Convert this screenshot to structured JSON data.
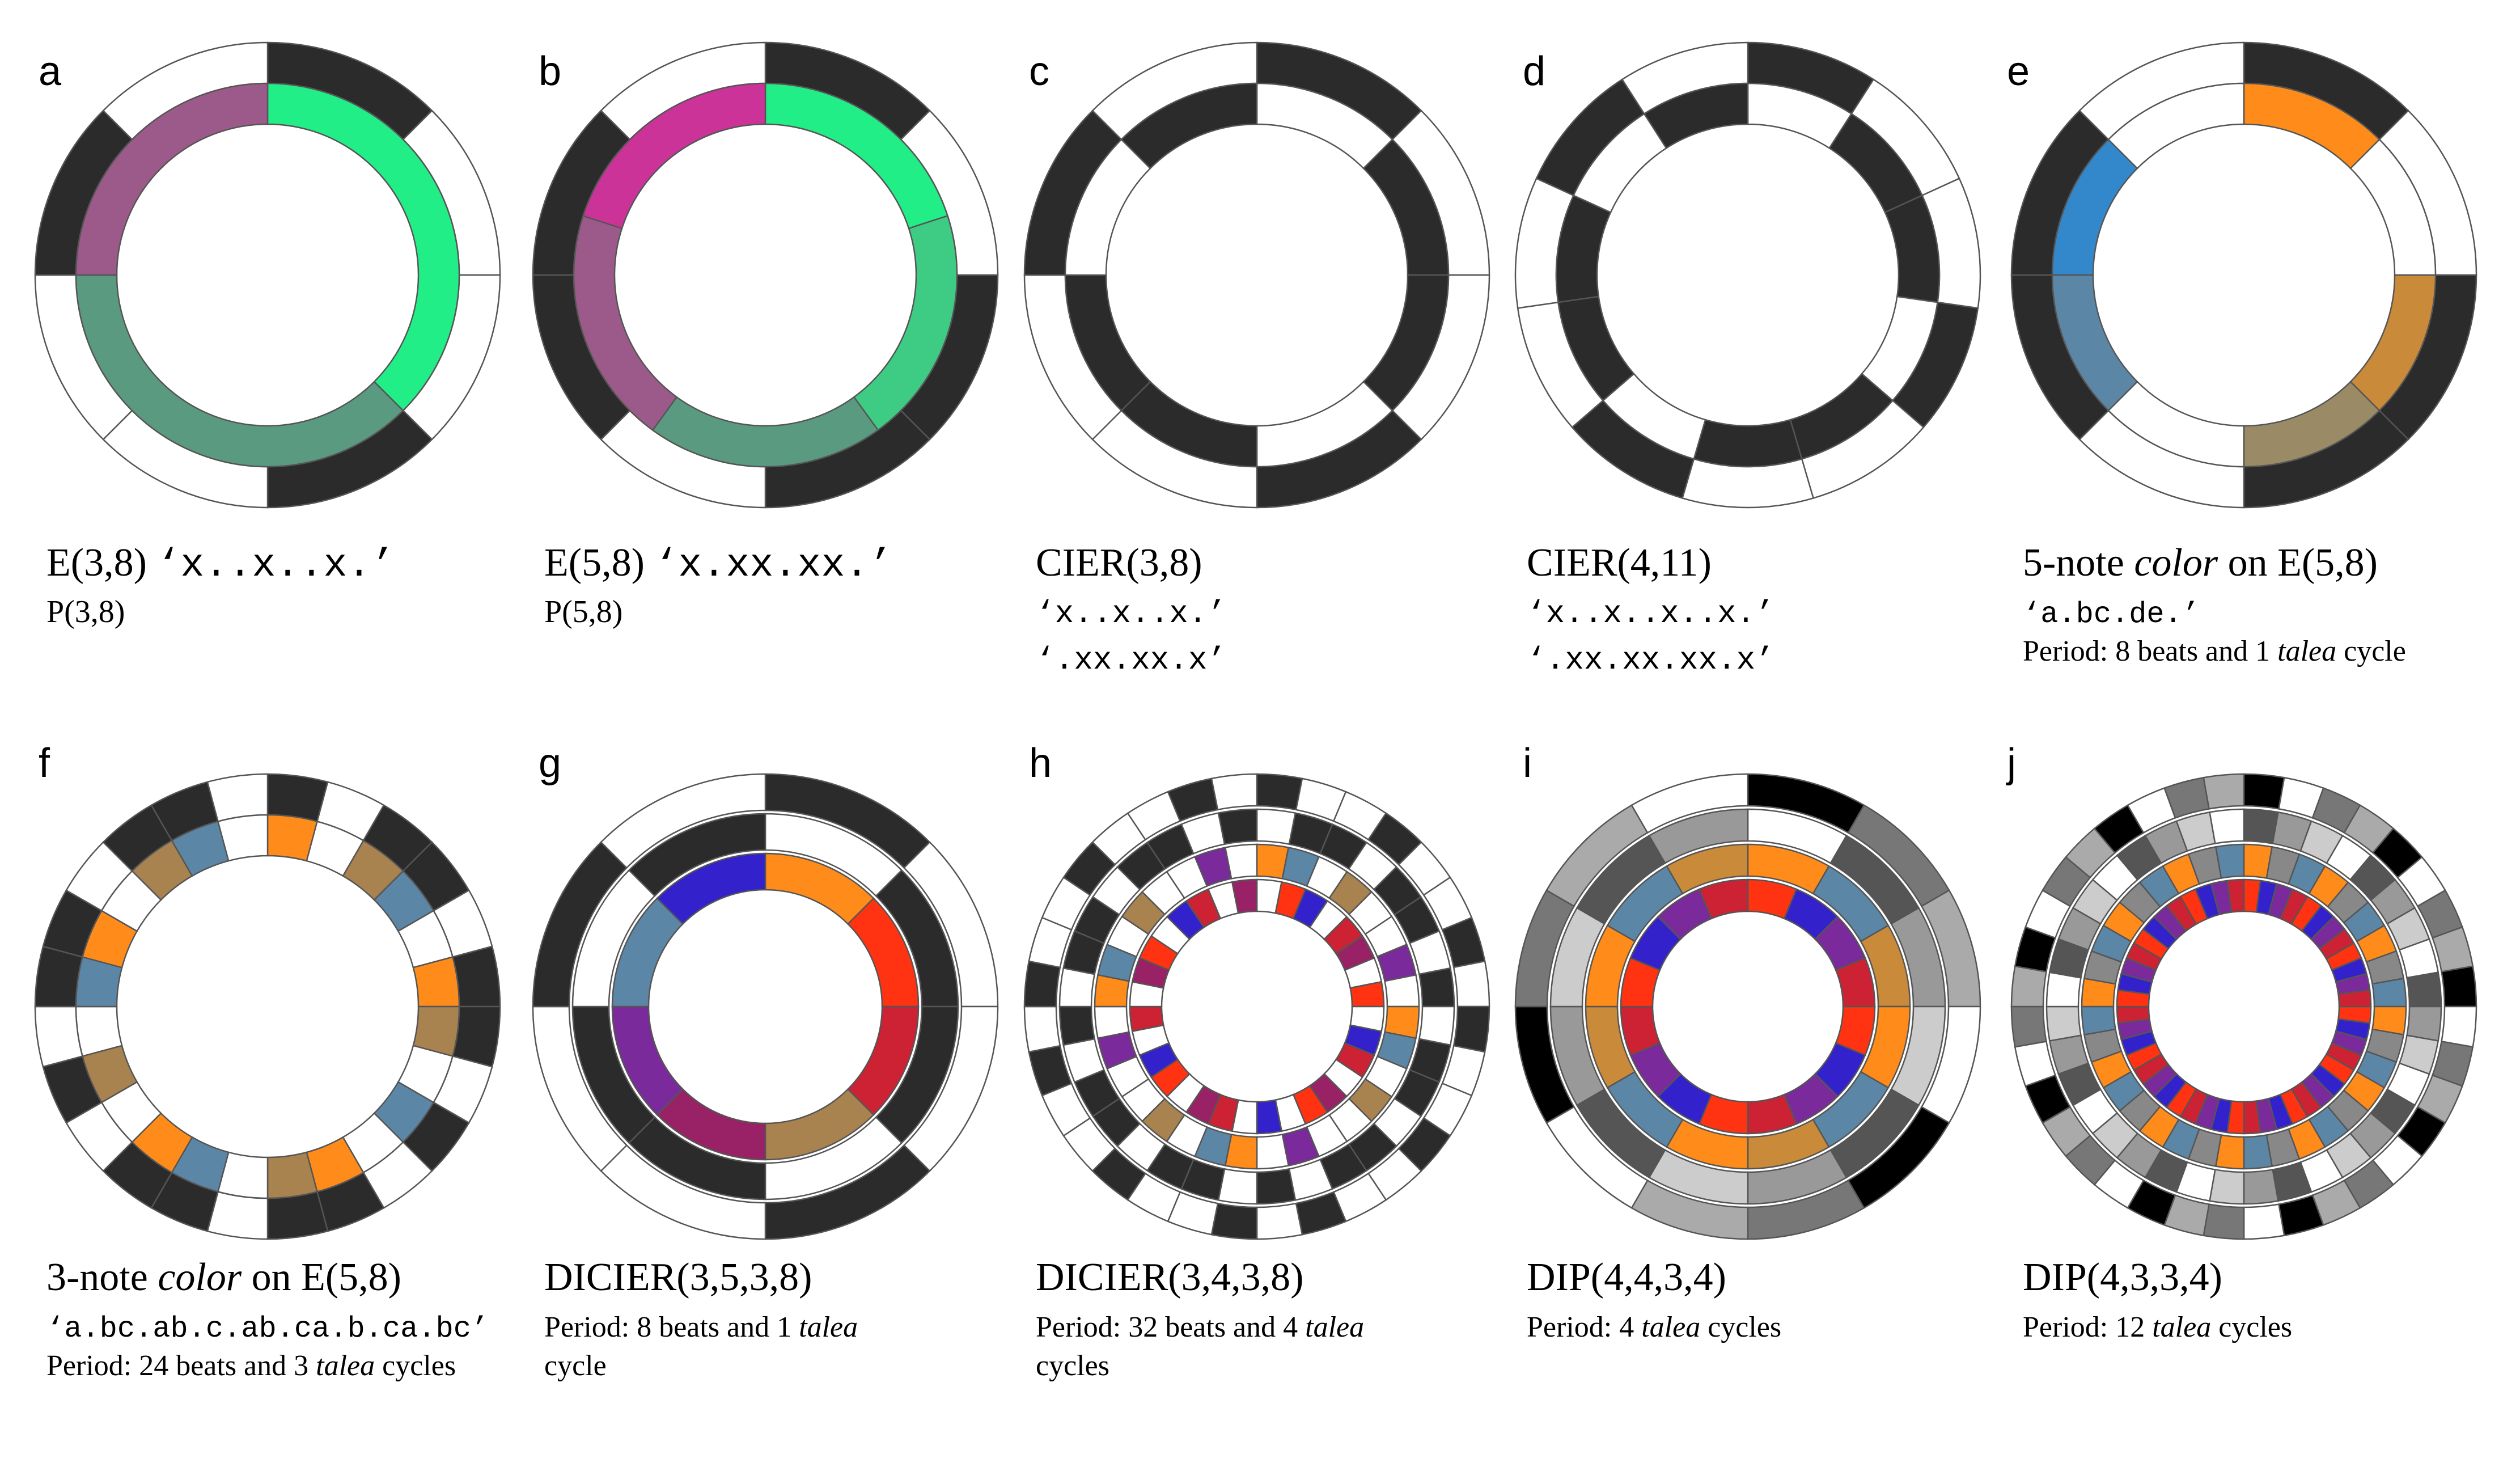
{
  "colors": {
    "black": "#2b2b2b",
    "white": "#ffffff",
    "green_bright": "#22ee88",
    "green_mid": "#3ecc85",
    "green_teal": "#5a9a80",
    "purple_mauve": "#9c5a8a",
    "magenta": "#cc3399",
    "orange": "#ff8c1a",
    "blue": "#3388cc",
    "steel_blue": "#5b86a6",
    "tan": "#a8824f",
    "khaki": "#9a8a66",
    "copper": "#c98a3a",
    "red": "#ff3311",
    "crimson": "#cc2233",
    "indigo": "#3322cc",
    "violet": "#7a2a9a",
    "plum": "#992266"
  },
  "panels": [
    {
      "letter": "a",
      "caption_lines": [
        {
          "parts": [
            {
              "text": "E(3,8) ",
              "style": "serif"
            },
            {
              "text": "‘x..x..x.’",
              "style": "mono"
            }
          ]
        },
        {
          "parts": [
            {
              "text": "P(3,8)",
              "style": "serif"
            }
          ]
        }
      ],
      "rings": [
        {
          "pattern": "x..x..x.",
          "on": "black",
          "off": "white"
        },
        {
          "arcs": [
            {
              "start": 0,
              "span": 3,
              "color": "green_bright"
            },
            {
              "start": 3,
              "span": 3,
              "color": "green_teal"
            },
            {
              "start": 6,
              "span": 2,
              "color": "purple_mauve"
            }
          ]
        }
      ]
    },
    {
      "letter": "b",
      "caption_lines": [
        {
          "parts": [
            {
              "text": "E(5,8) ",
              "style": "serif"
            },
            {
              "text": "‘x.xx.xx.’",
              "style": "mono"
            }
          ]
        },
        {
          "parts": [
            {
              "text": "P(5,8)",
              "style": "serif"
            }
          ]
        }
      ],
      "rings": [
        {
          "pattern": "x.xx.xx.",
          "on": "black",
          "off": "white"
        },
        {
          "arcs": [
            {
              "start": 0,
              "span": 1.6,
              "color": "green_bright"
            },
            {
              "start": 1.6,
              "span": 1.6,
              "color": "green_mid"
            },
            {
              "start": 3.2,
              "span": 1.6,
              "color": "green_teal"
            },
            {
              "start": 4.8,
              "span": 1.6,
              "color": "purple_mauve"
            },
            {
              "start": 6.4,
              "span": 1.6,
              "color": "magenta"
            }
          ]
        }
      ]
    },
    {
      "letter": "c",
      "caption_lines": [
        {
          "parts": [
            {
              "text": "CIER(3,8)",
              "style": "serif"
            }
          ]
        },
        {
          "parts": [
            {
              "text": "‘x..x..x.’",
              "style": "mono"
            }
          ]
        },
        {
          "parts": [
            {
              "text": "‘.xx.xx.x’",
              "style": "mono"
            }
          ]
        }
      ],
      "rings": [
        {
          "pattern": "x..x..x.",
          "on": "black",
          "off": "white"
        },
        {
          "pattern": ".xx.xx.x",
          "on": "black",
          "off": "white"
        }
      ]
    },
    {
      "letter": "d",
      "caption_lines": [
        {
          "parts": [
            {
              "text": "CIER(4,11)",
              "style": "serif"
            }
          ]
        },
        {
          "parts": [
            {
              "text": "‘x..x..x..x.’",
              "style": "mono"
            }
          ]
        },
        {
          "parts": [
            {
              "text": "‘.xx.xx.xx.x’",
              "style": "mono"
            }
          ]
        }
      ],
      "rings": [
        {
          "pattern": "x..x..x..x.",
          "on": "black",
          "off": "white"
        },
        {
          "pattern": ".xx.xx.xx.x",
          "on": "black",
          "off": "white"
        }
      ]
    },
    {
      "letter": "e",
      "caption_lines": [
        {
          "parts": [
            {
              "text": "5-note ",
              "style": "serif"
            },
            {
              "text": "color",
              "style": "italic"
            },
            {
              "text": " on E(5,8)",
              "style": "serif"
            }
          ]
        },
        {
          "parts": [
            {
              "text": "‘a.bc.de.’",
              "style": "mono"
            }
          ],
          "size": "small"
        },
        {
          "parts": [
            {
              "text": "Period:  8 beats and 1 ",
              "style": "serif"
            },
            {
              "text": "talea",
              "style": "italic"
            },
            {
              "text": " cycle",
              "style": "serif"
            }
          ],
          "size": "small"
        }
      ],
      "rings": [
        {
          "pattern": "x.xx.xx.",
          "on": "black",
          "off": "white"
        },
        {
          "cells": [
            "orange",
            "white",
            "copper",
            "khaki",
            "white",
            "steel_blue",
            "blue",
            "white"
          ]
        }
      ]
    },
    {
      "letter": "f",
      "caption_lines": [
        {
          "parts": [
            {
              "text": "3-note ",
              "style": "serif"
            },
            {
              "text": "color",
              "style": "italic"
            },
            {
              "text": " on E(5,8)",
              "style": "serif"
            }
          ]
        },
        {
          "parts": [
            {
              "text": "‘a.bc.ab.c.ab.ca.b.ca.bc’",
              "style": "mono"
            }
          ],
          "size": "small"
        },
        {
          "parts": [
            {
              "text": "Period:  24 beats and 3 ",
              "style": "serif"
            },
            {
              "text": "talea",
              "style": "italic"
            },
            {
              "text": " cycles",
              "style": "serif"
            }
          ],
          "size": "small"
        }
      ],
      "rings": [
        {
          "pattern": "x.xx.xx.x.xx.xx.x.xx.xx.",
          "on": "black",
          "off": "white"
        },
        {
          "sequence": "a.bc.ab.c.ab.ca.b.ca.bc.",
          "map": {
            "a": "orange",
            "b": "tan",
            "c": "steel_blue"
          }
        }
      ]
    },
    {
      "letter": "g",
      "caption_lines": [
        {
          "parts": [
            {
              "text": "DICIER(3,5,3,8)",
              "style": "serif"
            }
          ]
        },
        {
          "parts": [
            {
              "text": "Period:  8 beats and 1 ",
              "style": "serif"
            },
            {
              "text": "talea",
              "style": "italic"
            }
          ],
          "size": "small"
        },
        {
          "parts": [
            {
              "text": "cycle",
              "style": "serif"
            }
          ],
          "size": "small"
        }
      ],
      "rings": [
        {
          "pattern": "x..x..x.",
          "on": "black",
          "off": "white"
        },
        {
          "pattern": ".xx.xx.x",
          "on": "black",
          "off": "white"
        },
        {
          "cells": [
            "orange",
            "red",
            "crimson",
            "tan",
            "plum",
            "violet",
            "steel_blue",
            "indigo"
          ]
        }
      ]
    },
    {
      "letter": "h",
      "caption_lines": [
        {
          "parts": [
            {
              "text": "DICIER(3,4,3,8)",
              "style": "serif"
            }
          ]
        },
        {
          "parts": [
            {
              "text": "Period:  32 beats and 4 ",
              "style": "serif"
            },
            {
              "text": "talea",
              "style": "italic"
            }
          ],
          "size": "small"
        },
        {
          "parts": [
            {
              "text": "cycles",
              "style": "serif"
            }
          ],
          "size": "small"
        }
      ],
      "rings": [
        {
          "pattern": "x..x..x.x..x..x.x..x..x.x..x..x.",
          "on": "black",
          "off": "white"
        },
        {
          "pattern": ".xx.xx.x.xx.xx.x.xx.xx.x.xx.xx.x",
          "on": "black",
          "off": "white"
        },
        {
          "sequence": "ab.c..d.ab.c..d.ab.c..d.ab.c..d.",
          "map": {
            "a": "orange",
            "b": "steel_blue",
            "c": "tan",
            "d": "violet"
          }
        },
        {
          "sequence": ".ab.cd.a.bc.da.b.cd.ab.c.da.bc.d",
          "map": {
            "a": "red",
            "b": "indigo",
            "c": "crimson",
            "d": "plum"
          }
        }
      ]
    },
    {
      "letter": "i",
      "caption_lines": [
        {
          "parts": [
            {
              "text": "DIP(4,4,3,4)",
              "style": "serif"
            }
          ]
        },
        {
          "parts": [
            {
              "text": "Period:  4 ",
              "style": "serif"
            },
            {
              "text": "talea",
              "style": "italic"
            },
            {
              "text": " cycles",
              "style": "serif"
            }
          ],
          "size": "small"
        }
      ],
      "rings": [
        {
          "cells": [
            "#000000",
            "#777777",
            "#aaaaaa",
            "#ffffff",
            "#000000",
            "#777777",
            "#aaaaaa",
            "#ffffff",
            "#000000",
            "#777777",
            "#aaaaaa",
            "#ffffff"
          ]
        },
        {
          "cells": [
            "#ffffff",
            "#555555",
            "#999999",
            "#cccccc",
            "#555555",
            "#999999",
            "#cccccc",
            "#555555",
            "#999999",
            "#cccccc",
            "#555555",
            "#999999"
          ]
        },
        {
          "cells": [
            "orange",
            "steel_blue",
            "copper",
            "orange",
            "steel_blue",
            "copper",
            "orange",
            "steel_blue",
            "copper",
            "orange",
            "steel_blue",
            "copper"
          ]
        },
        {
          "cells": [
            "red",
            "indigo",
            "violet",
            "crimson",
            "red",
            "indigo",
            "violet",
            "crimson",
            "red",
            "indigo",
            "violet",
            "crimson",
            "red",
            "indigo",
            "violet",
            "crimson"
          ]
        }
      ]
    },
    {
      "letter": "j",
      "caption_lines": [
        {
          "parts": [
            {
              "text": "DIP(4,3,3,4)",
              "style": "serif"
            }
          ]
        },
        {
          "parts": [
            {
              "text": "Period:  12 ",
              "style": "serif"
            },
            {
              "text": "talea",
              "style": "italic"
            },
            {
              "text": " cycles",
              "style": "serif"
            }
          ],
          "size": "small"
        }
      ],
      "rings": [
        {
          "cells": [
            "#000000",
            "#ffffff",
            "#777777",
            "#aaaaaa",
            "#000000",
            "#ffffff",
            "#777777",
            "#aaaaaa",
            "#000000",
            "#ffffff",
            "#777777",
            "#aaaaaa",
            "#000000",
            "#ffffff",
            "#777777",
            "#aaaaaa",
            "#000000",
            "#ffffff",
            "#777777",
            "#aaaaaa",
            "#000000",
            "#ffffff",
            "#777777",
            "#aaaaaa",
            "#000000",
            "#ffffff",
            "#777777",
            "#aaaaaa",
            "#000000",
            "#ffffff",
            "#777777",
            "#aaaaaa",
            "#000000",
            "#ffffff",
            "#777777",
            "#aaaaaa"
          ]
        },
        {
          "cells": [
            "#555555",
            "#999999",
            "#cccccc",
            "#ffffff",
            "#555555",
            "#999999",
            "#cccccc",
            "#ffffff",
            "#555555",
            "#999999",
            "#cccccc",
            "#ffffff",
            "#555555",
            "#999999",
            "#cccccc",
            "#ffffff",
            "#555555",
            "#999999",
            "#cccccc",
            "#ffffff",
            "#555555",
            "#999999",
            "#cccccc",
            "#ffffff",
            "#555555",
            "#999999",
            "#cccccc",
            "#ffffff",
            "#555555",
            "#999999",
            "#cccccc",
            "#ffffff",
            "#555555",
            "#999999",
            "#cccccc",
            "#ffffff"
          ]
        },
        {
          "cells": [
            "orange",
            "#888888",
            "steel_blue",
            "orange",
            "#888888",
            "steel_blue",
            "orange",
            "#888888",
            "steel_blue",
            "orange",
            "#888888",
            "steel_blue",
            "orange",
            "#888888",
            "steel_blue",
            "orange",
            "#888888",
            "steel_blue",
            "orange",
            "#888888",
            "steel_blue",
            "orange",
            "#888888",
            "steel_blue",
            "orange",
            "#888888",
            "steel_blue",
            "orange",
            "#888888",
            "steel_blue",
            "orange",
            "#888888",
            "steel_blue",
            "orange",
            "#888888",
            "steel_blue"
          ]
        },
        {
          "cells": [
            "red",
            "indigo",
            "violet",
            "crimson",
            "red",
            "indigo",
            "violet",
            "crimson",
            "red",
            "indigo",
            "violet",
            "crimson",
            "red",
            "indigo",
            "violet",
            "crimson",
            "red",
            "indigo",
            "violet",
            "crimson",
            "red",
            "indigo",
            "violet",
            "crimson",
            "red",
            "indigo",
            "violet",
            "crimson",
            "red",
            "indigo",
            "violet",
            "crimson",
            "red",
            "indigo",
            "violet",
            "crimson",
            "red",
            "indigo",
            "violet",
            "crimson",
            "red",
            "indigo",
            "violet",
            "crimson",
            "red",
            "indigo",
            "violet",
            "crimson"
          ]
        }
      ]
    }
  ]
}
